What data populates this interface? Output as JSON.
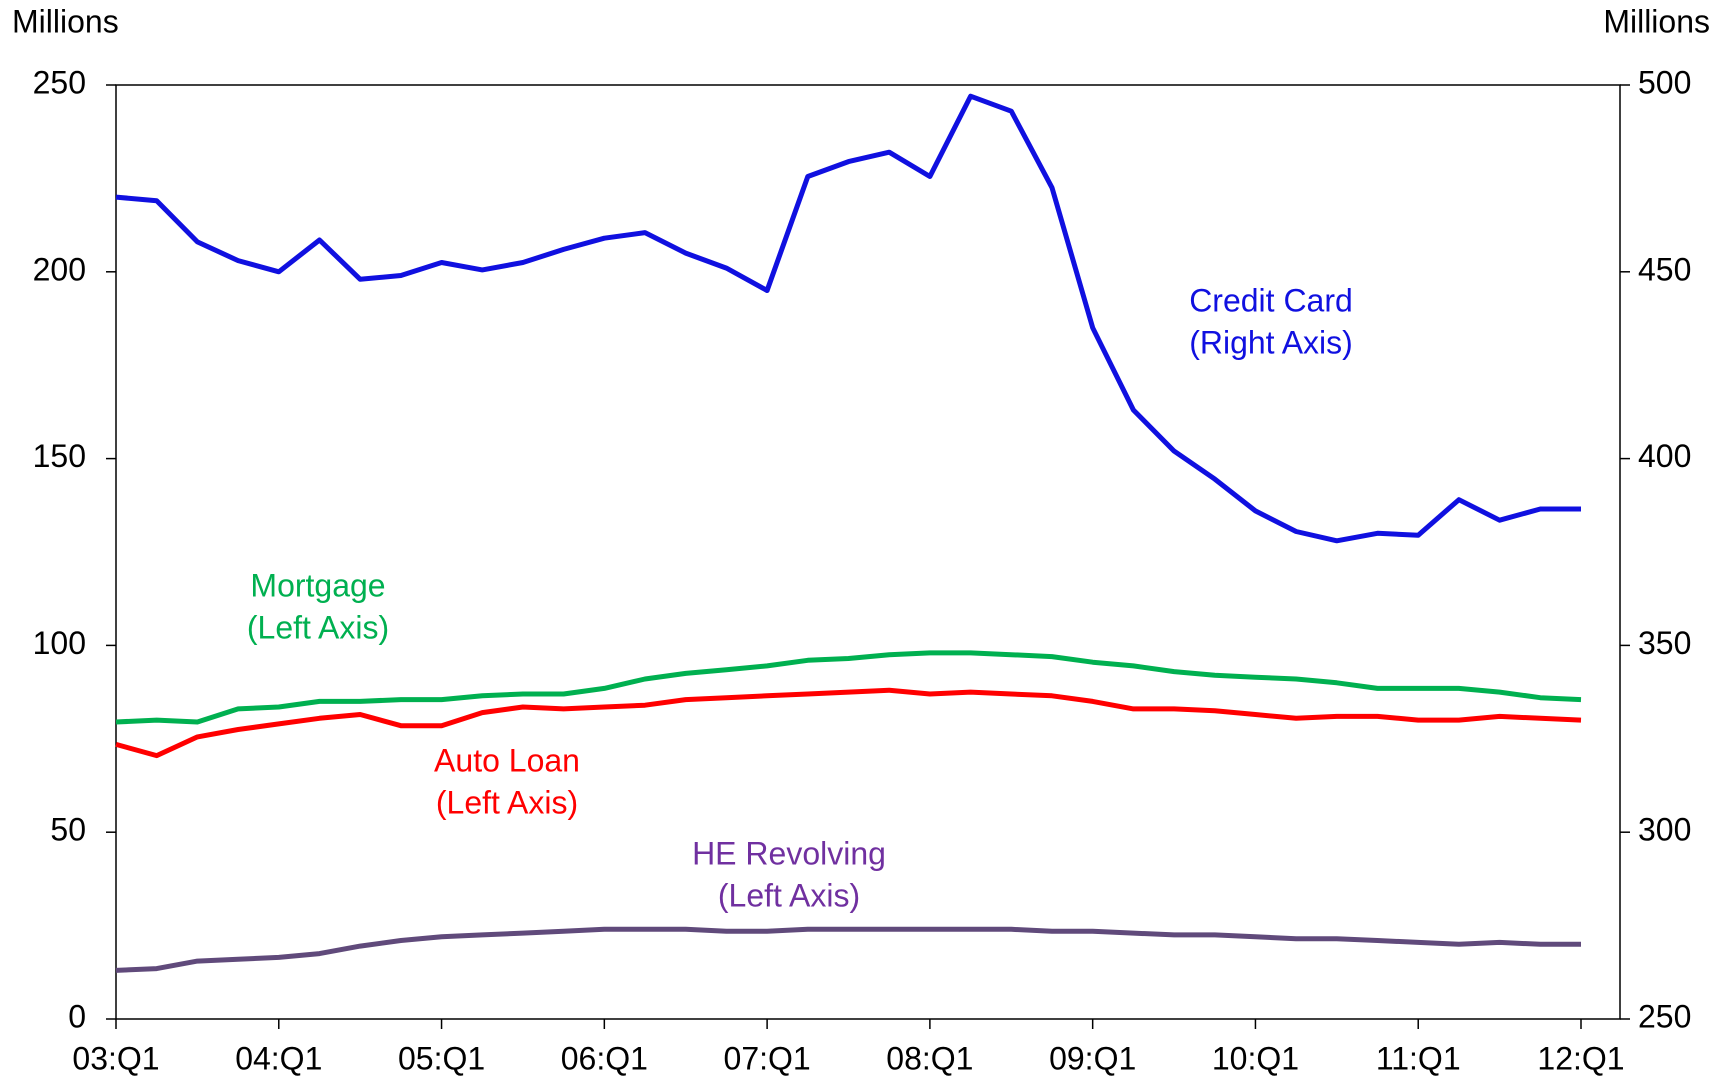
{
  "chart_data": {
    "type": "line",
    "y_label": "Millions",
    "y2_label": "Millions",
    "categories": [
      "03:Q1",
      null,
      null,
      null,
      "04:Q1",
      null,
      null,
      null,
      "05:Q1",
      null,
      null,
      null,
      "06:Q1",
      null,
      null,
      null,
      "07:Q1",
      null,
      null,
      null,
      "08:Q1",
      null,
      null,
      null,
      "09:Q1",
      null,
      null,
      null,
      "10:Q1",
      null,
      null,
      null,
      "11:Q1",
      null,
      null,
      null,
      "12:Q1"
    ],
    "ylim": [
      0,
      250
    ],
    "yticks": [
      0,
      50,
      100,
      150,
      200,
      250
    ],
    "y2lim": [
      250,
      500
    ],
    "y2ticks": [
      250,
      300,
      350,
      400,
      450,
      500
    ],
    "series": [
      {
        "name": "Credit Card",
        "axis_label": "(Right Axis)",
        "color": "#1010e0",
        "axis": "y2",
        "values": [
          470,
          469,
          458,
          453,
          450,
          458.5,
          448,
          449,
          452.5,
          450.5,
          452.5,
          456,
          459,
          460.5,
          455,
          451,
          445,
          475.5,
          479.5,
          482,
          475.5,
          497,
          493,
          472.5,
          435,
          413,
          402,
          394.5,
          386,
          380.5,
          378,
          380,
          379.5,
          389,
          383.5,
          386.5,
          386.5
        ]
      },
      {
        "name": "Mortgage",
        "axis_label": "(Left Axis)",
        "color": "#00b050",
        "values": [
          79.5,
          80,
          79.5,
          83,
          83.5,
          85,
          85,
          85.5,
          85.5,
          86.5,
          87,
          87,
          88.5,
          91,
          92.5,
          93.5,
          94.5,
          96,
          96.5,
          97.5,
          98,
          98,
          97.5,
          97,
          95.5,
          94.5,
          93,
          92,
          91.5,
          91,
          90,
          88.5,
          88.5,
          88.5,
          87.5,
          86,
          85.5
        ]
      },
      {
        "name": "Auto Loan",
        "axis_label": "(Left Axis)",
        "color": "#ff0000",
        "values": [
          73.5,
          70.5,
          75.5,
          77.5,
          79,
          80.5,
          81.5,
          78.5,
          78.5,
          82,
          83.5,
          83,
          83.5,
          84,
          85.5,
          86,
          86.5,
          87,
          87.5,
          88,
          87,
          87.5,
          87,
          86.5,
          85,
          83,
          83,
          82.5,
          81.5,
          80.5,
          81,
          81,
          80,
          80,
          81,
          80.5,
          80
        ]
      },
      {
        "name": "HE Revolving",
        "axis_label": "(Left Axis)",
        "color": "#604a7b",
        "label_color": "#7030a0",
        "values": [
          13,
          13.5,
          15.5,
          16,
          16.5,
          17.5,
          19.5,
          21,
          22,
          22.5,
          23,
          23.5,
          24,
          24,
          24,
          23.5,
          23.5,
          24,
          24,
          24,
          24,
          24,
          24,
          23.5,
          23.5,
          23,
          22.5,
          22.5,
          22,
          21.5,
          21.5,
          21,
          20.5,
          20,
          20.5,
          20,
          20
        ]
      }
    ]
  }
}
